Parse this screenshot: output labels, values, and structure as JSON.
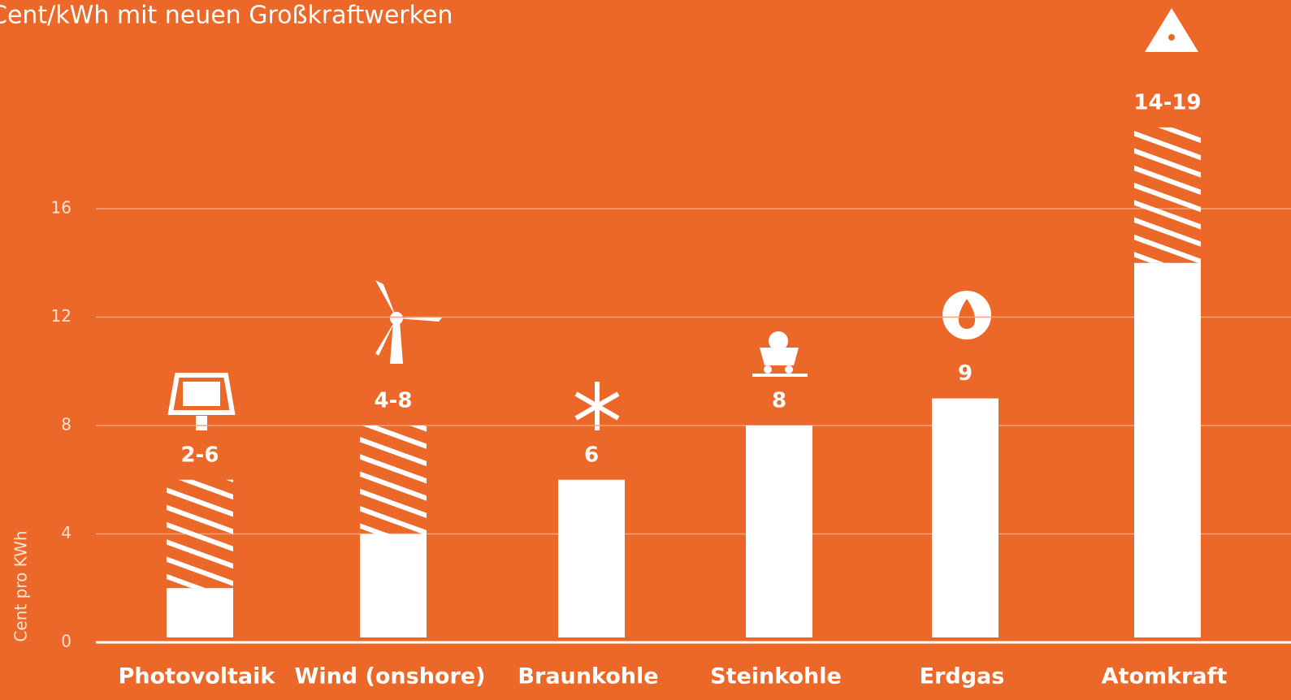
{
  "chart_data": {
    "type": "range-bar",
    "title": "Cent/kWh mit neuen Großkraftwerken",
    "y_label": "Cent pro KWh",
    "categories": [
      "Photovoltaik",
      "Wind (onshore)",
      "Braunkohle",
      "Steinkohle",
      "Erdgas",
      "Atomkraft"
    ],
    "low": [
      2,
      4,
      6,
      8,
      9,
      14
    ],
    "high": [
      6,
      8,
      null,
      null,
      null,
      19
    ],
    "value_labels": [
      "2-6",
      "4-8",
      "6",
      "8",
      "9",
      "14-19"
    ],
    "color": "#ffffff",
    "background": "#eb6828",
    "ylim": [
      0,
      24
    ],
    "yticks": [
      0,
      4,
      8,
      12,
      16
    ],
    "grid": true
  }
}
